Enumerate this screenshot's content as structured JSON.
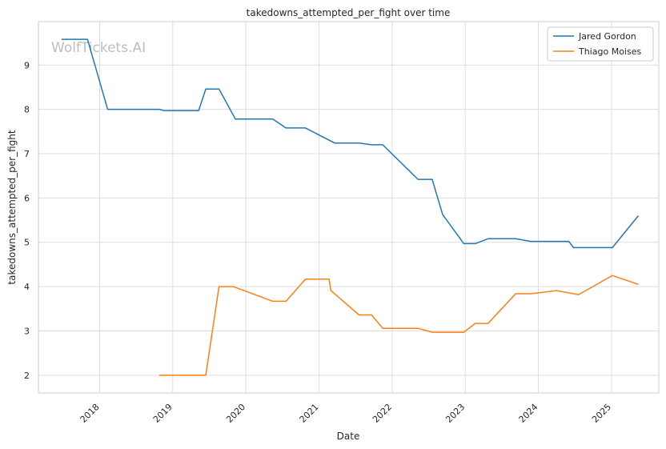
{
  "chart_data": {
    "type": "line",
    "title": "takedowns_attempted_per_fight over time",
    "xlabel": "Date",
    "ylabel": "takedowns_attempted_per_fight",
    "watermark": "WolfTickets.AI",
    "xlim": [
      "2017-03-01",
      "2025-08-25"
    ],
    "ylim": [
      1.6,
      9.98
    ],
    "x_ticks": [
      "2018",
      "2019",
      "2020",
      "2021",
      "2022",
      "2023",
      "2024",
      "2025"
    ],
    "y_ticks": [
      2,
      3,
      4,
      5,
      6,
      7,
      8,
      9
    ],
    "grid": true,
    "legend_position": "top-right",
    "series": [
      {
        "name": "Jared Gordon",
        "color": "#1f77b4",
        "points": [
          [
            "2017-06-25",
            9.58
          ],
          [
            "2017-11-01",
            9.58
          ],
          [
            "2018-02-10",
            8.0
          ],
          [
            "2018-10-25",
            8.0
          ],
          [
            "2018-11-20",
            7.97
          ],
          [
            "2019-05-10",
            7.97
          ],
          [
            "2019-06-15",
            8.46
          ],
          [
            "2019-08-20",
            8.46
          ],
          [
            "2019-11-10",
            7.78
          ],
          [
            "2020-05-15",
            7.78
          ],
          [
            "2020-07-20",
            7.58
          ],
          [
            "2020-10-25",
            7.58
          ],
          [
            "2021-03-20",
            7.24
          ],
          [
            "2021-07-20",
            7.24
          ],
          [
            "2021-09-20",
            7.2
          ],
          [
            "2021-11-15",
            7.2
          ],
          [
            "2022-05-10",
            6.42
          ],
          [
            "2022-07-20",
            6.42
          ],
          [
            "2022-09-10",
            5.63
          ],
          [
            "2022-12-25",
            4.97
          ],
          [
            "2023-02-20",
            4.97
          ],
          [
            "2023-04-25",
            5.08
          ],
          [
            "2023-09-10",
            5.08
          ],
          [
            "2023-11-25",
            5.02
          ],
          [
            "2024-06-01",
            5.02
          ],
          [
            "2024-06-25",
            4.88
          ],
          [
            "2025-01-05",
            4.88
          ],
          [
            "2025-05-15",
            5.6
          ]
        ]
      },
      {
        "name": "Thiago Moises",
        "color": "#ff7f0e",
        "points": [
          [
            "2018-10-25",
            2.0
          ],
          [
            "2019-06-15",
            2.0
          ],
          [
            "2019-08-20",
            4.0
          ],
          [
            "2019-10-30",
            4.0
          ],
          [
            "2020-05-15",
            3.67
          ],
          [
            "2020-07-20",
            3.67
          ],
          [
            "2020-10-25",
            4.17
          ],
          [
            "2021-02-20",
            4.17
          ],
          [
            "2021-03-01",
            3.91
          ],
          [
            "2021-07-20",
            3.36
          ],
          [
            "2021-09-20",
            3.36
          ],
          [
            "2021-11-15",
            3.06
          ],
          [
            "2022-05-10",
            3.06
          ],
          [
            "2022-07-20",
            2.97
          ],
          [
            "2022-12-25",
            2.97
          ],
          [
            "2023-02-20",
            3.17
          ],
          [
            "2023-04-25",
            3.17
          ],
          [
            "2023-09-10",
            3.84
          ],
          [
            "2023-11-25",
            3.84
          ],
          [
            "2024-04-01",
            3.91
          ],
          [
            "2024-07-20",
            3.82
          ],
          [
            "2025-01-05",
            4.25
          ],
          [
            "2025-05-15",
            4.05
          ]
        ]
      }
    ]
  }
}
